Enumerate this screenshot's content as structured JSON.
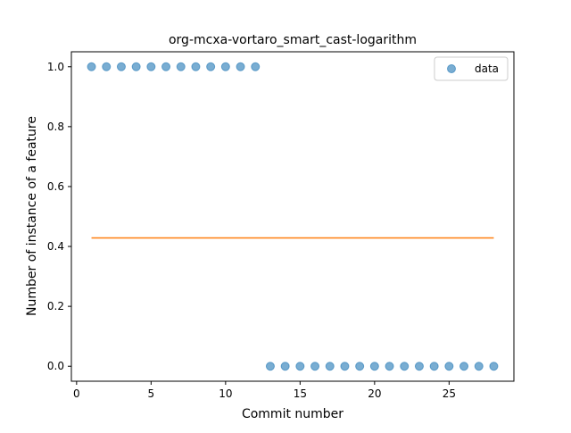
{
  "chart_data": {
    "type": "scatter",
    "title": "org-mcxa-vortaro_smart_cast-logarithm",
    "xlabel": "Commit number",
    "ylabel": "Number of instance of a feature",
    "xlim": [
      -0.35,
      29.35
    ],
    "ylim": [
      -0.05,
      1.05
    ],
    "xticks": [
      0,
      5,
      10,
      15,
      20,
      25
    ],
    "xtick_labels": [
      "0",
      "5",
      "10",
      "15",
      "20",
      "25"
    ],
    "yticks": [
      0.0,
      0.2,
      0.4,
      0.6,
      0.8,
      1.0
    ],
    "ytick_labels": [
      "0.0",
      "0.2",
      "0.4",
      "0.6",
      "0.8",
      "1.0"
    ],
    "grid": false,
    "legend": {
      "position": "top-right",
      "entries": [
        "data"
      ]
    },
    "series": [
      {
        "name": "data",
        "kind": "scatter",
        "color": "#1f77b4",
        "x": [
          1,
          2,
          3,
          4,
          5,
          6,
          7,
          8,
          9,
          10,
          11,
          12,
          13,
          14,
          15,
          16,
          17,
          18,
          19,
          20,
          21,
          22,
          23,
          24,
          25,
          26,
          27,
          28
        ],
        "y": [
          1,
          1,
          1,
          1,
          1,
          1,
          1,
          1,
          1,
          1,
          1,
          1,
          0,
          0,
          0,
          0,
          0,
          0,
          0,
          0,
          0,
          0,
          0,
          0,
          0,
          0,
          0,
          0
        ]
      },
      {
        "kind": "line",
        "color": "#ff7f0e",
        "x": [
          1,
          28
        ],
        "y": [
          0.4286,
          0.4286
        ]
      }
    ]
  }
}
